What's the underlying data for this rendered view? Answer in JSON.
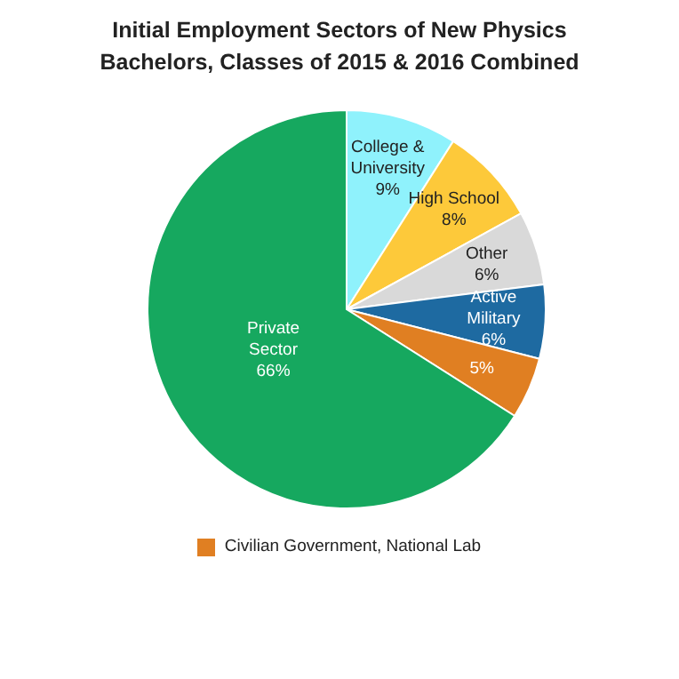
{
  "chart_data": {
    "type": "pie",
    "title": "Initial Employment Sectors of New Physics Bachelors, Classes of 2015 & 2016 Combined",
    "categories": [
      "College & University",
      "High School",
      "Other",
      "Active Military",
      "Civilian Government, National Lab",
      "Private Sector"
    ],
    "values": [
      9,
      8,
      6,
      6,
      5,
      66
    ],
    "colors": [
      "#8ff2fc",
      "#fdc93a",
      "#d9d9d9",
      "#1e6aa1",
      "#e07f22",
      "#16a85f"
    ],
    "value_labels": [
      "9%",
      "8%",
      "6%",
      "6%",
      "5%",
      "66%"
    ],
    "legend": "bottom"
  }
}
